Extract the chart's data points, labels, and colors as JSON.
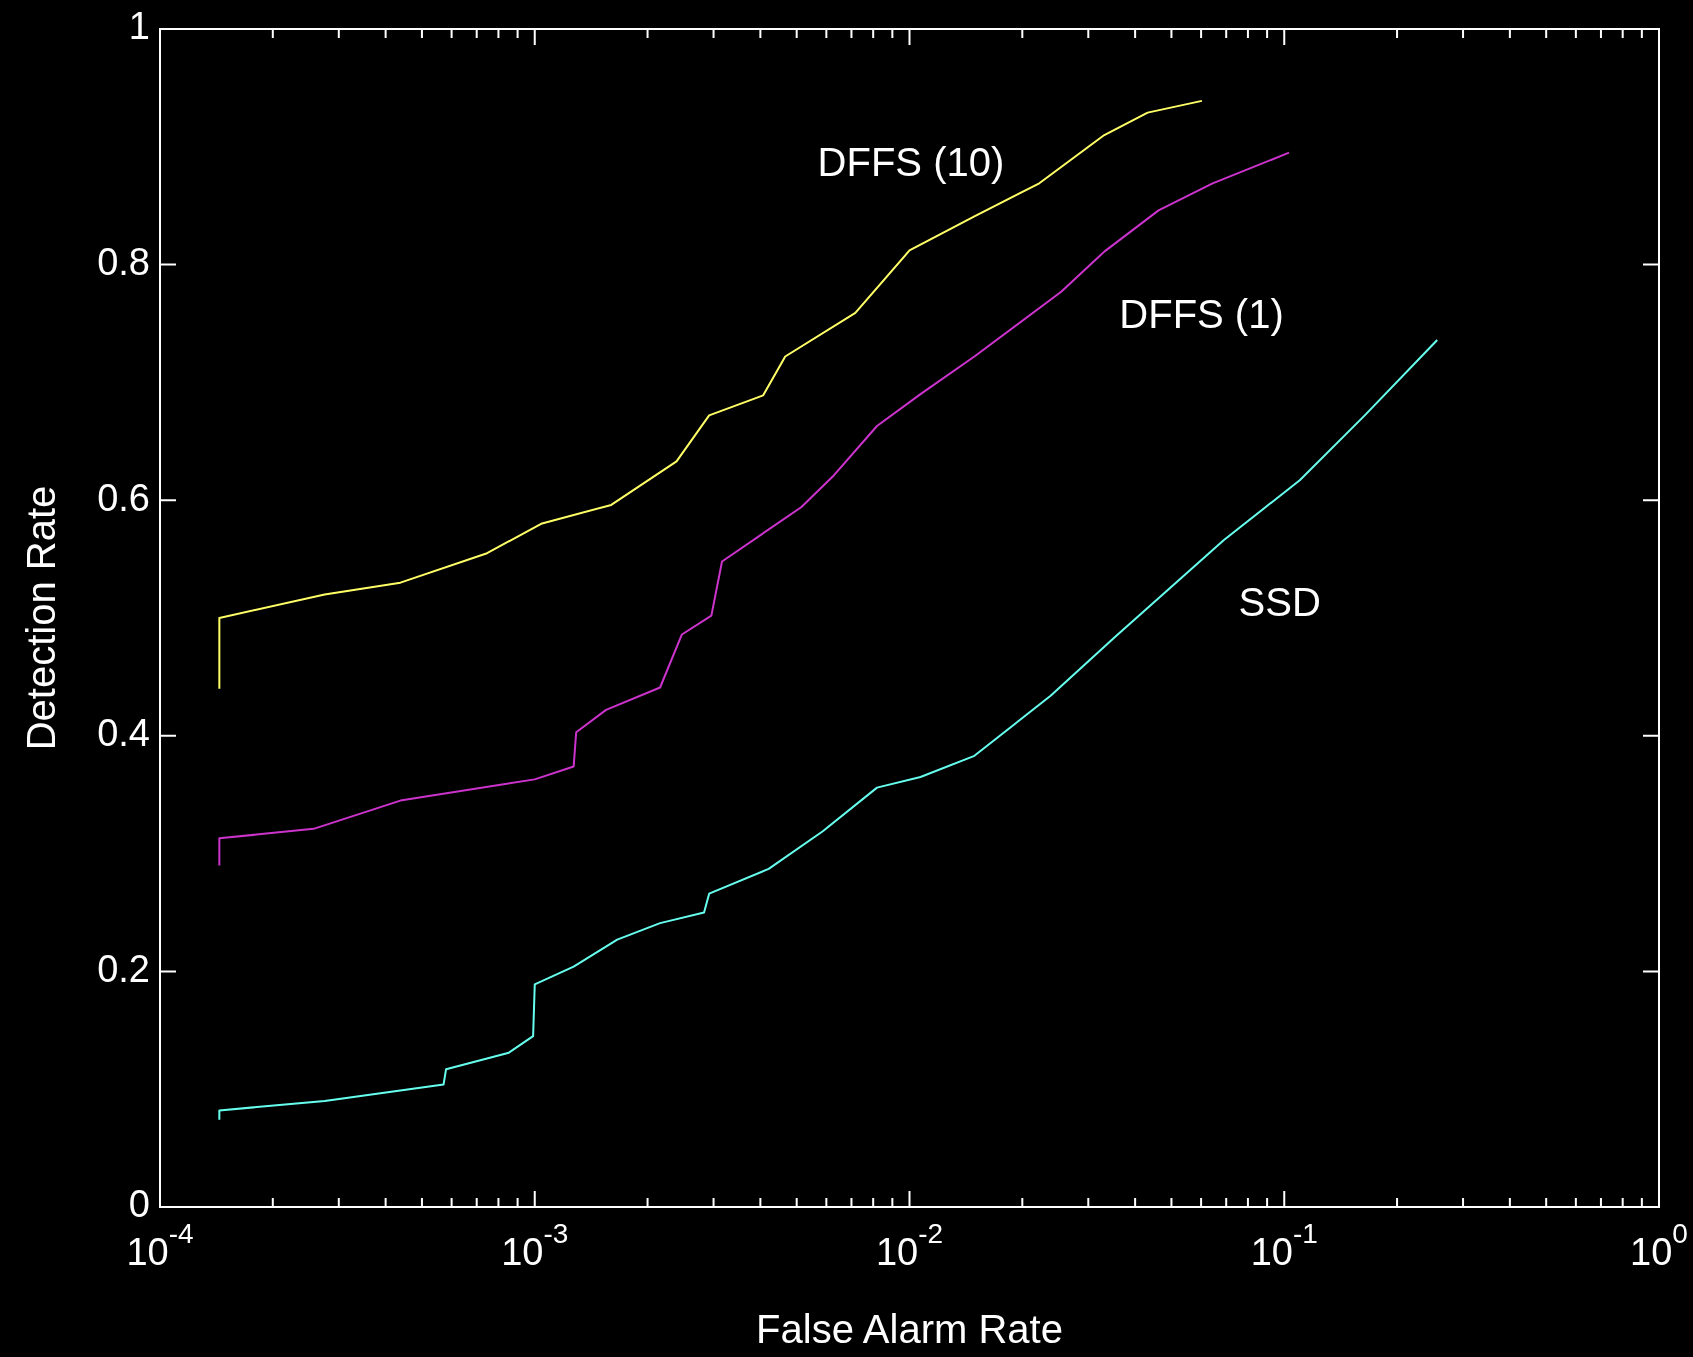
{
  "chart_data": {
    "type": "line",
    "xlabel": "False Alarm Rate",
    "ylabel": "Detection Rate",
    "log": "x",
    "grid": false,
    "legend": false,
    "marker": "none",
    "line_style": "solid",
    "xlim": [
      0.0001,
      1
    ],
    "ylim": [
      0,
      1
    ],
    "xticks": [
      {
        "value": 0.0001,
        "label": "10$^{-4}$"
      },
      {
        "value": 0.0002,
        "label": null
      },
      {
        "value": 0.0003,
        "label": null
      },
      {
        "value": 0.0004,
        "label": null
      },
      {
        "value": 0.0005,
        "label": null
      },
      {
        "value": 0.0006,
        "label": null
      },
      {
        "value": 0.0007,
        "label": null
      },
      {
        "value": 0.0008,
        "label": null
      },
      {
        "value": 0.0009,
        "label": null
      },
      {
        "value": 0.001,
        "label": "10$^{-3}$"
      },
      {
        "value": 0.002,
        "label": null
      },
      {
        "value": 0.003,
        "label": null
      },
      {
        "value": 0.004,
        "label": null
      },
      {
        "value": 0.005,
        "label": null
      },
      {
        "value": 0.006,
        "label": null
      },
      {
        "value": 0.007,
        "label": null
      },
      {
        "value": 0.008,
        "label": null
      },
      {
        "value": 0.009,
        "label": null
      },
      {
        "value": 0.01,
        "label": "10$^{-2}$"
      },
      {
        "value": 0.02,
        "label": null
      },
      {
        "value": 0.03,
        "label": null
      },
      {
        "value": 0.04,
        "label": null
      },
      {
        "value": 0.05,
        "label": null
      },
      {
        "value": 0.06,
        "label": null
      },
      {
        "value": 0.07,
        "label": null
      },
      {
        "value": 0.08,
        "label": null
      },
      {
        "value": 0.09,
        "label": null
      },
      {
        "value": 0.1,
        "label": "10$^{-1}$"
      },
      {
        "value": 0.2,
        "label": null
      },
      {
        "value": 0.3,
        "label": null
      },
      {
        "value": 0.4,
        "label": null
      },
      {
        "value": 0.5,
        "label": null
      },
      {
        "value": 0.6,
        "label": null
      },
      {
        "value": 0.7,
        "label": null
      },
      {
        "value": 0.8,
        "label": null
      },
      {
        "value": 0.9,
        "label": null
      },
      {
        "value": 1,
        "label": "10$^{0}$"
      }
    ],
    "yticks": [
      0,
      0.2,
      0.4,
      0.6,
      0.8,
      1
    ],
    "series": [
      {
        "name": "DFFS (10)",
        "color": "#ffff66",
        "x": [
          0.000144,
          0.000144,
          0.000275,
          0.000438,
          0.000746,
          0.00104,
          0.0016,
          0.00239,
          0.00292,
          0.00407,
          0.00466,
          0.00717,
          0.01,
          0.0149,
          0.0222,
          0.0331,
          0.0432,
          0.0603
        ],
        "values": [
          0.44,
          0.5,
          0.52,
          0.53,
          0.555,
          0.58,
          0.596,
          0.633,
          0.672,
          0.689,
          0.722,
          0.759,
          0.812,
          0.841,
          0.869,
          0.91,
          0.929,
          0.939
        ]
      },
      {
        "name": "DFFS (1)",
        "color": "#cc33cc",
        "x": [
          0.000144,
          0.000144,
          0.000257,
          0.000438,
          0.001,
          0.00127,
          0.00129,
          0.00155,
          0.00216,
          0.00247,
          0.00296,
          0.00316,
          0.00514,
          0.00628,
          0.00819,
          0.0107,
          0.0149,
          0.0254,
          0.0331,
          0.0462,
          0.0644,
          0.103
        ],
        "values": [
          0.29,
          0.313,
          0.321,
          0.345,
          0.363,
          0.374,
          0.403,
          0.422,
          0.441,
          0.486,
          0.502,
          0.548,
          0.594,
          0.621,
          0.663,
          0.69,
          0.722,
          0.777,
          0.811,
          0.846,
          0.869,
          0.895
        ]
      },
      {
        "name": "SSD",
        "color": "#66ffee",
        "x": [
          0.000144,
          0.000144,
          0.000275,
          0.000571,
          0.00058,
          0.000853,
          0.00099,
          0.001,
          0.00127,
          0.00166,
          0.00216,
          0.00283,
          0.00292,
          0.00421,
          0.00587,
          0.00819,
          0.0107,
          0.0149,
          0.0238,
          0.0354,
          0.0494,
          0.0689,
          0.11,
          0.164,
          0.256
        ],
        "values": [
          0.074,
          0.082,
          0.09,
          0.104,
          0.117,
          0.131,
          0.145,
          0.189,
          0.204,
          0.227,
          0.241,
          0.25,
          0.266,
          0.287,
          0.319,
          0.356,
          0.365,
          0.383,
          0.434,
          0.484,
          0.525,
          0.566,
          0.617,
          0.672,
          0.736
        ]
      }
    ]
  }
}
